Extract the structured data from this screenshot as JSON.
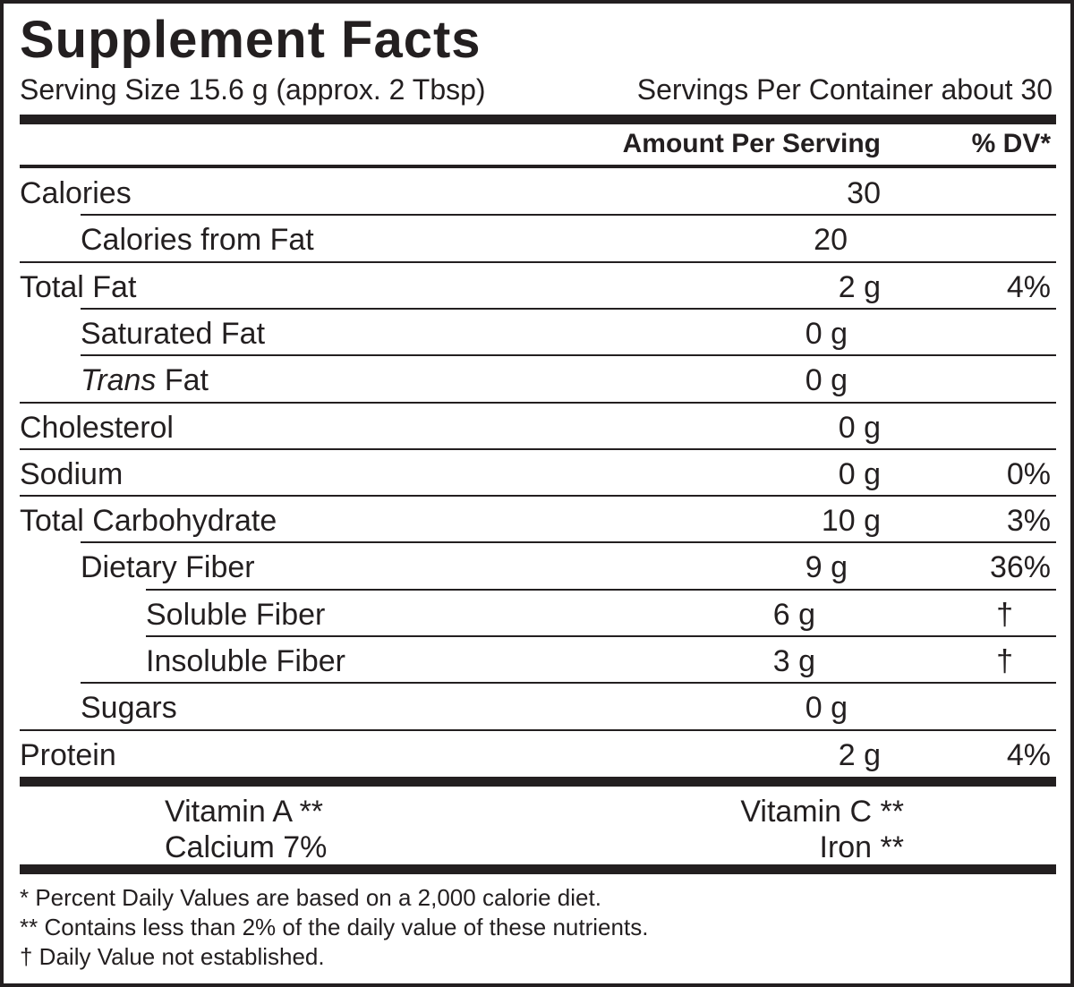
{
  "title": "Supplement Facts",
  "serving": {
    "size": "Serving Size 15.6 g (approx. 2 Tbsp)",
    "per_container": "Servings Per Container about 30"
  },
  "header": {
    "amount": "Amount Per Serving",
    "dv": "% DV*"
  },
  "nutrients": [
    {
      "name": "Calories",
      "amount": "30",
      "sub": [
        {
          "name": "Calories from Fat",
          "amount": "20"
        }
      ]
    },
    {
      "name": "Total Fat",
      "amount": "2 g",
      "dv": "4%",
      "sub": [
        {
          "name": "Saturated Fat",
          "amount": "0 g"
        },
        {
          "name_italic": "Trans",
          "name": " Fat",
          "amount": "0 g"
        }
      ]
    },
    {
      "name": "Cholesterol",
      "amount": "0 g"
    },
    {
      "name": "Sodium",
      "amount": "0 g",
      "dv": "0%"
    },
    {
      "name": "Total Carbohydrate",
      "amount": "10 g",
      "dv": "3%",
      "sub": [
        {
          "name": "Dietary Fiber",
          "amount": "9 g",
          "dv": "36%",
          "sub": [
            {
              "name": "Soluble Fiber",
              "amount": "6 g",
              "dv": "†"
            },
            {
              "name": "Insoluble Fiber",
              "amount": "3 g",
              "dv": "†"
            }
          ]
        },
        {
          "name": "Sugars",
          "amount": "0 g"
        }
      ]
    },
    {
      "name": "Protein",
      "amount": "2 g",
      "dv": "4%"
    }
  ],
  "vitamins": [
    [
      "Vitamin A **",
      "Vitamin C **"
    ],
    [
      "Calcium 7%",
      "Iron **"
    ]
  ],
  "footnotes": [
    "* Percent Daily Values are based on a 2,000 calorie diet.",
    "** Contains less than 2% of the daily value of these nutrients.",
    "† Daily Value not established."
  ]
}
